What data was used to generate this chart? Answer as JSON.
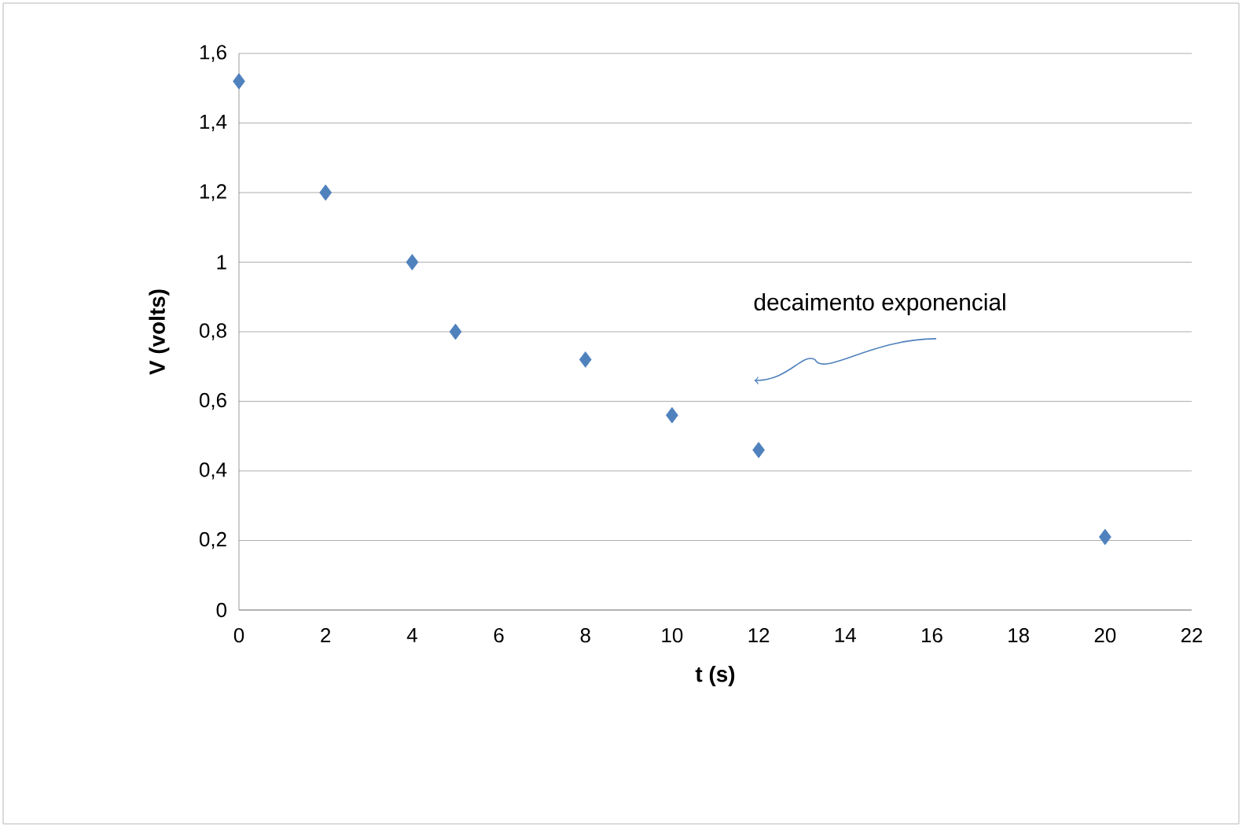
{
  "chart_data": {
    "type": "scatter",
    "xlabel": "t (s)",
    "ylabel": "V (volts)",
    "x": [
      0,
      2,
      4,
      5,
      8,
      10,
      12,
      20
    ],
    "values": [
      1.52,
      1.2,
      1.0,
      0.8,
      0.72,
      0.56,
      0.46,
      0.21
    ],
    "color": "#4f81bd",
    "marker": "diamond",
    "xlim": [
      0,
      22
    ],
    "xticks": [
      0,
      2,
      4,
      6,
      8,
      10,
      12,
      14,
      16,
      18,
      20,
      22
    ],
    "ylim": [
      0,
      1.6
    ],
    "yticks": [
      0,
      {
        "value": 0.2,
        "label": "0,2"
      },
      {
        "value": 0.4,
        "label": "0,4"
      },
      {
        "value": 0.6,
        "label": "0,6"
      },
      {
        "value": 0.8,
        "label": "0,8"
      },
      1,
      {
        "value": 1.2,
        "label": "1,2"
      },
      {
        "value": 1.4,
        "label": "1,4"
      },
      {
        "value": 1.6,
        "label": "1,6"
      }
    ],
    "grid": "y",
    "annotations": [
      {
        "text": "decaimento exponencial",
        "x": 11.9,
        "y": 0.66
      }
    ]
  }
}
